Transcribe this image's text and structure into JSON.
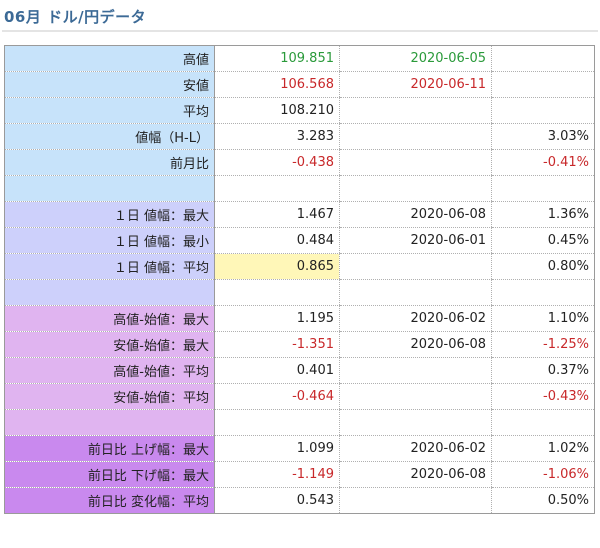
{
  "title": "06月 ドル/円データ",
  "rows": [
    {
      "label": "高値",
      "v1": "109.851",
      "v1c": "green",
      "v2": "2020-06-05",
      "v2c": "green",
      "v3": "",
      "v3c": "",
      "band": "blue"
    },
    {
      "label": "安値",
      "v1": "106.568",
      "v1c": "red",
      "v2": "2020-06-11",
      "v2c": "red",
      "v3": "",
      "v3c": "",
      "band": "blue"
    },
    {
      "label": "平均",
      "v1": "108.210",
      "v1c": "",
      "v2": "",
      "v2c": "",
      "v3": "",
      "v3c": "",
      "band": "blue"
    },
    {
      "label": "値幅（H-L）",
      "v1": "3.283",
      "v1c": "",
      "v2": "",
      "v2c": "",
      "v3": "3.03%",
      "v3c": "",
      "band": "blue"
    },
    {
      "label": "前月比",
      "v1": "-0.438",
      "v1c": "red",
      "v2": "",
      "v2c": "",
      "v3": "-0.41%",
      "v3c": "red",
      "band": "blue"
    },
    {
      "label": "",
      "v1": "",
      "v1c": "",
      "v2": "",
      "v2c": "",
      "v3": "",
      "v3c": "",
      "band": "blue"
    },
    {
      "label": "１日 値幅：最大",
      "v1": "1.467",
      "v1c": "",
      "v2": "2020-06-08",
      "v2c": "",
      "v3": "1.36%",
      "v3c": "",
      "band": "lav"
    },
    {
      "label": "１日 値幅：最小",
      "v1": "0.484",
      "v1c": "",
      "v2": "2020-06-01",
      "v2c": "",
      "v3": "0.45%",
      "v3c": "",
      "band": "lav"
    },
    {
      "label": "１日 値幅：平均",
      "v1": "0.865",
      "v1c": "",
      "v2": "",
      "v2c": "",
      "v3": "0.80%",
      "v3c": "",
      "band": "lav",
      "hl": true
    },
    {
      "label": "",
      "v1": "",
      "v1c": "",
      "v2": "",
      "v2c": "",
      "v3": "",
      "v3c": "",
      "band": "lav"
    },
    {
      "label": "高値-始値：最大",
      "v1": "1.195",
      "v1c": "",
      "v2": "2020-06-02",
      "v2c": "",
      "v3": "1.10%",
      "v3c": "",
      "band": "pink"
    },
    {
      "label": "安値-始値：最大",
      "v1": "-1.351",
      "v1c": "red",
      "v2": "2020-06-08",
      "v2c": "",
      "v3": "-1.25%",
      "v3c": "red",
      "band": "pink"
    },
    {
      "label": "高値-始値：平均",
      "v1": "0.401",
      "v1c": "",
      "v2": "",
      "v2c": "",
      "v3": "0.37%",
      "v3c": "",
      "band": "pink"
    },
    {
      "label": "安値-始値：平均",
      "v1": "-0.464",
      "v1c": "red",
      "v2": "",
      "v2c": "",
      "v3": "-0.43%",
      "v3c": "red",
      "band": "pink"
    },
    {
      "label": "",
      "v1": "",
      "v1c": "",
      "v2": "",
      "v2c": "",
      "v3": "",
      "v3c": "",
      "band": "pink"
    },
    {
      "label": "前日比 上げ幅：最大",
      "v1": "1.099",
      "v1c": "",
      "v2": "2020-06-02",
      "v2c": "",
      "v3": "1.02%",
      "v3c": "",
      "band": "vio"
    },
    {
      "label": "前日比 下げ幅：最大",
      "v1": "-1.149",
      "v1c": "red",
      "v2": "2020-06-08",
      "v2c": "",
      "v3": "-1.06%",
      "v3c": "red",
      "band": "vio"
    },
    {
      "label": "前日比 変化幅：平均",
      "v1": "0.543",
      "v1c": "",
      "v2": "",
      "v2c": "",
      "v3": "0.50%",
      "v3c": "",
      "band": "vio"
    }
  ],
  "colors": {
    "positive": "#2a9a3a",
    "negative": "#c8282a",
    "highlight": "#fff7b8",
    "band_blue": "#c7e3fa",
    "band_lavender": "#cdd0fb",
    "band_pink": "#e0b4f0",
    "band_violet": "#c989ee"
  }
}
